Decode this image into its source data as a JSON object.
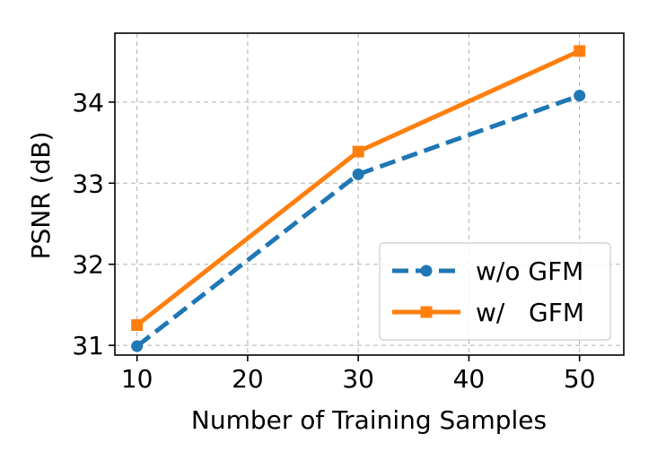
{
  "chart_data": {
    "type": "line",
    "title": "",
    "xlabel": "Number of Training Samples",
    "ylabel": "PSNR (dB)",
    "x": [
      10,
      30,
      50
    ],
    "xlim": [
      8,
      54
    ],
    "ylim": [
      30.88,
      34.85
    ],
    "xticks": [
      10,
      20,
      30,
      40,
      50
    ],
    "yticks": [
      31,
      32,
      33,
      34
    ],
    "grid": true,
    "legend_position": "lower-right",
    "series": [
      {
        "name": "w/o GFM",
        "values": [
          30.99,
          33.11,
          34.08
        ],
        "color": "#1f77b4",
        "line_style": "dashed",
        "marker": "circle"
      },
      {
        "name": "w/   GFM",
        "values": [
          31.25,
          33.39,
          34.63
        ],
        "color": "#ff7f0e",
        "line_style": "solid",
        "marker": "square"
      }
    ]
  }
}
